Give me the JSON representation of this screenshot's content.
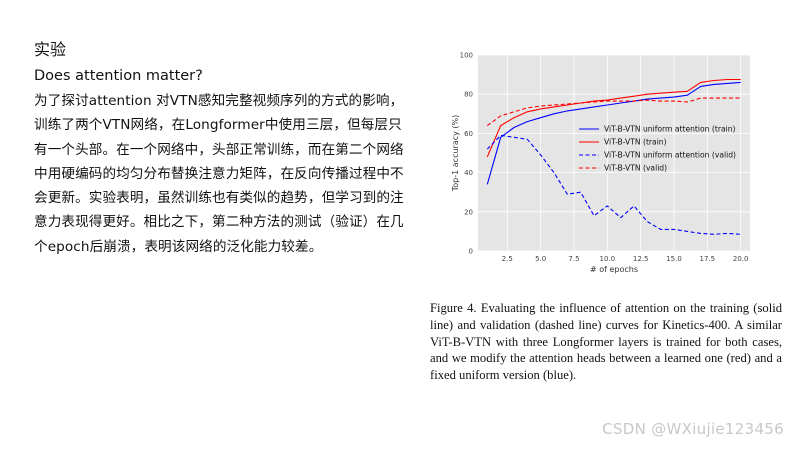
{
  "text": {
    "heading": "实验",
    "subheading": "Does attention matter?",
    "paragraph": "为了探讨attention 对VTN感知完整视频序列的方式的影响，训练了两个VTN网络，在Longformer中使用三层，但每层只有一个头部。在一个网络中，头部正常训练，而在第二个网络中用硬编码的均匀分布替换注意力矩阵，在反向传播过程中不会更新。实验表明，虽然训练也有类似的趋势，但学习到的注意力表现得更好。相比之下，第二种方法的测试（验证）在几个epoch后崩溃，表明该网络的泛化能力较差。"
  },
  "caption": "Figure 4. Evaluating the influence of attention on the training (solid line) and validation (dashed line) curves for Kinetics-400. A similar ViT-B-VTN with three Longformer layers is trained for both cases, and we modify the attention heads between a learned one (red) and a fixed uniform version (blue).",
  "watermark": "CSDN @WXiujie123456",
  "chart_data": {
    "type": "line",
    "xlabel": "# of epochs",
    "ylabel": "Top-1 accuracy (%)",
    "xlim": [
      0.3,
      20.7
    ],
    "ylim": [
      0,
      100
    ],
    "xticks": [
      2.5,
      5.0,
      7.5,
      10.0,
      12.5,
      15.0,
      17.5,
      20.0
    ],
    "xtick_labels": [
      "2.5",
      "5.0",
      "7.5",
      "10.0",
      "12.5",
      "15.0",
      "17.5",
      "20.0"
    ],
    "yticks": [
      0,
      20,
      40,
      60,
      80,
      100
    ],
    "ytick_labels": [
      "0",
      "20",
      "40",
      "60",
      "80",
      "100"
    ],
    "grid": true,
    "background": "#e5e5e5",
    "legend_position": "center-right",
    "series": [
      {
        "name": "ViT-B-VTN uniform attention (train)",
        "color": "#0000ff",
        "dashed": false,
        "x": [
          1,
          2,
          3,
          4,
          5,
          6,
          7,
          8,
          9,
          10,
          11,
          12,
          13,
          14,
          15,
          16,
          17,
          18,
          19,
          20
        ],
        "values": [
          34,
          58,
          63,
          66,
          68,
          70,
          71.5,
          72.5,
          73.5,
          74.5,
          75.5,
          76.5,
          77.5,
          78,
          78.5,
          79.5,
          84,
          85,
          85.5,
          86
        ]
      },
      {
        "name": "ViT-B-VTN (train)",
        "color": "#ff0000",
        "dashed": false,
        "x": [
          1,
          2,
          3,
          4,
          5,
          6,
          7,
          8,
          9,
          10,
          11,
          12,
          13,
          14,
          15,
          16,
          17,
          18,
          19,
          20
        ],
        "values": [
          48,
          64,
          68,
          71,
          72.5,
          73.5,
          74.5,
          75.5,
          76.5,
          77,
          78,
          79,
          80,
          80.5,
          81,
          81.5,
          86,
          87,
          87.5,
          87.5
        ]
      },
      {
        "name": "ViT-B-VTN uniform attention (valid)",
        "color": "#0000ff",
        "dashed": true,
        "x": [
          1,
          2,
          3,
          4,
          5,
          6,
          7,
          8,
          9,
          10,
          11,
          12,
          13,
          14,
          15,
          16,
          17,
          18,
          19,
          20
        ],
        "values": [
          52,
          59,
          58,
          57,
          49,
          40,
          29,
          30,
          18,
          23,
          17,
          23,
          15,
          11,
          11,
          10,
          9,
          8.5,
          9,
          8.5
        ]
      },
      {
        "name": "ViT-B-VTN (valid)",
        "color": "#ff0000",
        "dashed": true,
        "x": [
          1,
          2,
          3,
          4,
          5,
          6,
          7,
          8,
          9,
          10,
          11,
          12,
          13,
          14,
          15,
          16,
          17,
          18,
          19,
          20
        ],
        "values": [
          64,
          69,
          71,
          73,
          74,
          74.5,
          75,
          75.5,
          76,
          76.5,
          76.5,
          76.5,
          77,
          76.5,
          76.5,
          76,
          78,
          78,
          78,
          78
        ]
      }
    ]
  }
}
